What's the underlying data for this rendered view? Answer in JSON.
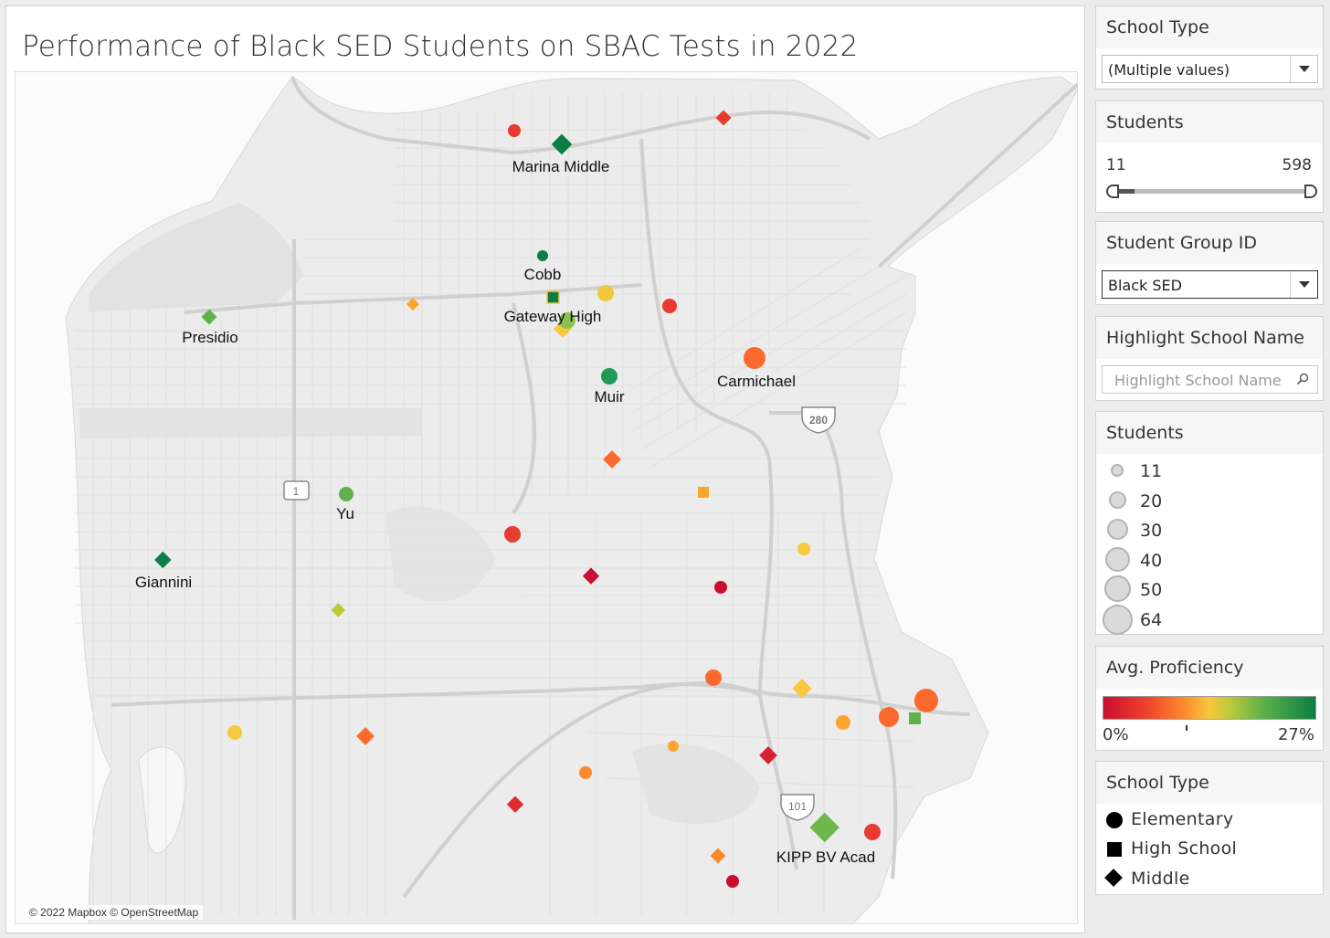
{
  "title": "Performance of Black SED Students on SBAC Tests in 2022",
  "map": {
    "attribution": "© 2022 Mapbox © OpenStreetMap",
    "highway_shields": [
      "280",
      "1",
      "101"
    ],
    "school_labels": [
      "Marina Middle",
      "Cobb",
      "Gateway High",
      "Presidio",
      "Carmichael",
      "Muir",
      "Yu",
      "Giannini",
      "KIPP BV Acad"
    ],
    "colors": {
      "deep_green": "#0b7e43",
      "green": "#5fb24b",
      "yellow_green": "#bcc93a",
      "yellow": "#f7c83c",
      "light_orange": "#fca52e",
      "orange": "#fb6a2c",
      "red": "#e83a2e",
      "dark_red": "#c8102e"
    }
  },
  "filters": {
    "school_type": {
      "title": "School Type",
      "value": "(Multiple values)"
    },
    "students_range": {
      "title": "Students",
      "min": "11",
      "max": "598"
    },
    "student_group": {
      "title": "Student Group ID",
      "value": "Black SED"
    },
    "highlight": {
      "title": "Highlight School Name",
      "placeholder": "Highlight School Name"
    }
  },
  "legend_size": {
    "title": "Students",
    "items": [
      "11",
      "20",
      "30",
      "40",
      "50",
      "64"
    ]
  },
  "legend_color": {
    "title": "Avg. Proficiency",
    "min_label": "0%",
    "max_label": "27%"
  },
  "legend_shape": {
    "title": "School Type",
    "items": [
      "Elementary",
      "High School",
      "Middle"
    ]
  }
}
